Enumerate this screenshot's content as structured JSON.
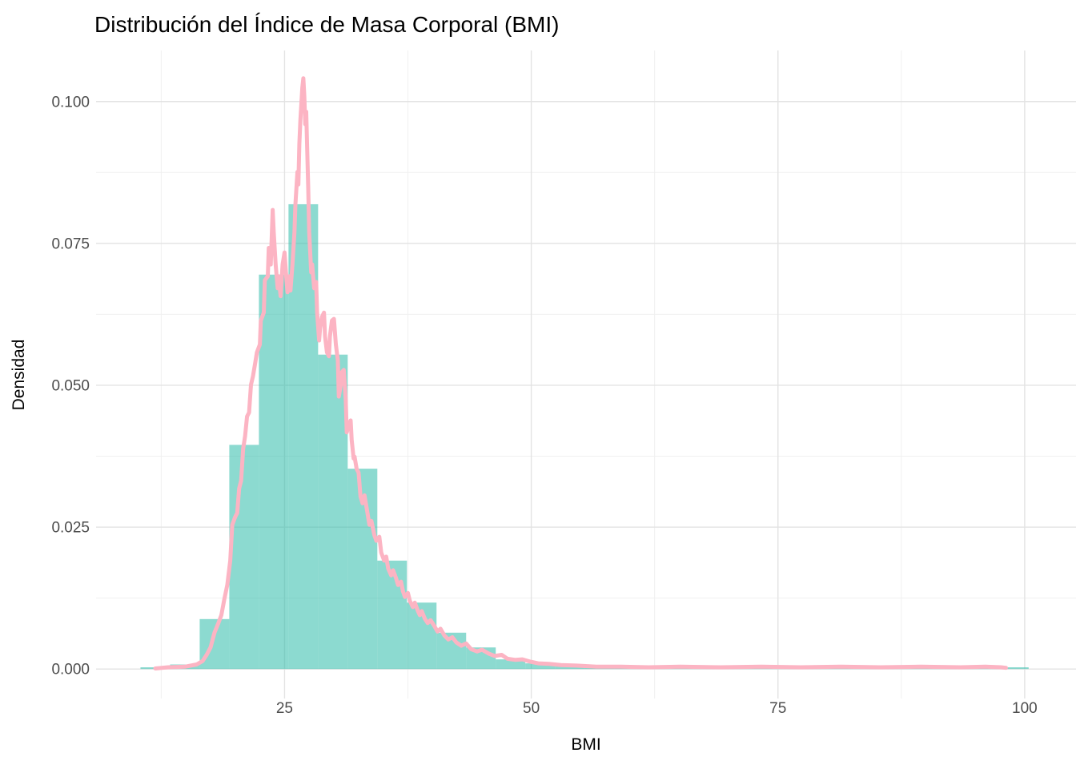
{
  "title": "Distribución del Índice de Masa Corporal (BMI)",
  "chart_data": {
    "type": "bar",
    "subtype": "histogram-with-density-overlay",
    "title": "Distribución del Índice de Masa Corporal (BMI)",
    "xlabel": "BMI",
    "ylabel": "Densidad",
    "legend_position": "none",
    "grid": true,
    "background": "#ffffff",
    "major_grid_color": "#e3e3e3",
    "minor_grid_color": "#f0f0f0",
    "xlim": [
      5.9,
      105.2
    ],
    "ylim": [
      -0.0052,
      0.109
    ],
    "x_ticks": [
      "25",
      "50",
      "75",
      "100"
    ],
    "x_tick_values": [
      25,
      50,
      75,
      100
    ],
    "x_minor_tick_values": [
      12.5,
      37.5,
      62.5,
      87.5
    ],
    "y_ticks": [
      "0.000",
      "0.025",
      "0.050",
      "0.075",
      "0.100"
    ],
    "y_tick_values": [
      0,
      0.025,
      0.05,
      0.075,
      0.1
    ],
    "y_minor_tick_values": [
      0.0125,
      0.0375,
      0.0625,
      0.0875
    ],
    "histogram": {
      "fill_color": "#2dbbaa",
      "fill_opacity": 0.55,
      "bin_start": 10.4,
      "bin_width": 3.0,
      "densities": [
        0.0003,
        0.0008,
        0.0088,
        0.0395,
        0.0695,
        0.0819,
        0.0554,
        0.0353,
        0.0191,
        0.0117,
        0.0064,
        0.0038,
        0.0017,
        0.001,
        0.0006,
        0.0004,
        0.0003,
        0.0003,
        0.0003,
        0.0003,
        0.0003,
        0.0003,
        0.0003,
        0.0003,
        0.0003,
        0.0003,
        0.0003,
        0.0003,
        0.0003,
        0.0003
      ]
    },
    "density_curve": {
      "color": "#fcb4c3",
      "stroke_width": 5,
      "points": [
        [
          11.9,
          0.0001
        ],
        [
          13.2,
          0.0003
        ],
        [
          14.9,
          0.0004
        ],
        [
          16.1,
          0.0008
        ],
        [
          16.7,
          0.0014
        ],
        [
          17.1,
          0.0025
        ],
        [
          17.5,
          0.0038
        ],
        [
          17.9,
          0.0064
        ],
        [
          18.3,
          0.0081
        ],
        [
          18.6,
          0.0095
        ],
        [
          18.9,
          0.0123
        ],
        [
          19.2,
          0.0148
        ],
        [
          19.5,
          0.0191
        ],
        [
          19.7,
          0.0254
        ],
        [
          20.0,
          0.0268
        ],
        [
          20.2,
          0.0275
        ],
        [
          20.4,
          0.0318
        ],
        [
          20.6,
          0.0332
        ],
        [
          20.8,
          0.0388
        ],
        [
          21.0,
          0.041
        ],
        [
          21.2,
          0.0445
        ],
        [
          21.4,
          0.0452
        ],
        [
          21.6,
          0.0501
        ],
        [
          21.8,
          0.0516
        ],
        [
          22.0,
          0.0537
        ],
        [
          22.2,
          0.0558
        ],
        [
          22.5,
          0.0572
        ],
        [
          22.6,
          0.0614
        ],
        [
          22.9,
          0.0628
        ],
        [
          23.0,
          0.0685
        ],
        [
          23.3,
          0.0692
        ],
        [
          23.4,
          0.0742
        ],
        [
          23.6,
          0.0713
        ],
        [
          23.8,
          0.0809
        ],
        [
          23.9,
          0.077
        ],
        [
          24.1,
          0.0713
        ],
        [
          24.3,
          0.0671
        ],
        [
          24.4,
          0.0692
        ],
        [
          24.6,
          0.0657
        ],
        [
          24.8,
          0.0713
        ],
        [
          25.0,
          0.0734
        ],
        [
          25.2,
          0.0685
        ],
        [
          25.3,
          0.0664
        ],
        [
          25.5,
          0.0692
        ],
        [
          25.6,
          0.0667
        ],
        [
          25.8,
          0.0713
        ],
        [
          26.0,
          0.077
        ],
        [
          26.1,
          0.0819
        ],
        [
          26.3,
          0.0876
        ],
        [
          26.4,
          0.0854
        ],
        [
          26.5,
          0.0925
        ],
        [
          26.6,
          0.0967
        ],
        [
          26.8,
          0.1024
        ],
        [
          26.9,
          0.1041
        ],
        [
          27.0,
          0.101
        ],
        [
          27.1,
          0.096
        ],
        [
          27.2,
          0.0982
        ],
        [
          27.3,
          0.0911
        ],
        [
          27.4,
          0.0847
        ],
        [
          27.5,
          0.077
        ],
        [
          27.7,
          0.0699
        ],
        [
          27.8,
          0.0713
        ],
        [
          28.0,
          0.0671
        ],
        [
          28.2,
          0.0682
        ],
        [
          28.3,
          0.0628
        ],
        [
          28.5,
          0.0579
        ],
        [
          28.6,
          0.06
        ],
        [
          28.8,
          0.0621
        ],
        [
          29.0,
          0.0628
        ],
        [
          29.1,
          0.0586
        ],
        [
          29.3,
          0.0558
        ],
        [
          29.5,
          0.0551
        ],
        [
          29.6,
          0.0586
        ],
        [
          29.8,
          0.0614
        ],
        [
          30.0,
          0.0617
        ],
        [
          30.2,
          0.0572
        ],
        [
          30.4,
          0.0544
        ],
        [
          30.5,
          0.048
        ],
        [
          30.7,
          0.0501
        ],
        [
          30.8,
          0.0523
        ],
        [
          31.0,
          0.0527
        ],
        [
          31.2,
          0.0473
        ],
        [
          31.3,
          0.0417
        ],
        [
          31.5,
          0.0431
        ],
        [
          31.7,
          0.0438
        ],
        [
          31.8,
          0.0403
        ],
        [
          32.0,
          0.0371
        ],
        [
          32.1,
          0.0374
        ],
        [
          32.3,
          0.0353
        ],
        [
          32.5,
          0.0346
        ],
        [
          32.7,
          0.0304
        ],
        [
          32.9,
          0.0292
        ],
        [
          33.1,
          0.0306
        ],
        [
          33.4,
          0.0275
        ],
        [
          33.6,
          0.0254
        ],
        [
          33.8,
          0.0261
        ],
        [
          34.1,
          0.0236
        ],
        [
          34.3,
          0.0226
        ],
        [
          34.6,
          0.0233
        ],
        [
          34.8,
          0.0205
        ],
        [
          35.1,
          0.0191
        ],
        [
          35.3,
          0.0198
        ],
        [
          35.5,
          0.0177
        ],
        [
          35.8,
          0.0165
        ],
        [
          36.0,
          0.0174
        ],
        [
          36.3,
          0.016
        ],
        [
          36.5,
          0.0148
        ],
        [
          36.8,
          0.0154
        ],
        [
          37.0,
          0.0137
        ],
        [
          37.2,
          0.0127
        ],
        [
          37.5,
          0.0134
        ],
        [
          37.7,
          0.012
        ],
        [
          38.0,
          0.0109
        ],
        [
          38.2,
          0.0117
        ],
        [
          38.5,
          0.0103
        ],
        [
          38.7,
          0.0095
        ],
        [
          38.9,
          0.0102
        ],
        [
          39.2,
          0.0089
        ],
        [
          39.5,
          0.0081
        ],
        [
          39.8,
          0.0086
        ],
        [
          40.2,
          0.0075
        ],
        [
          40.5,
          0.0066
        ],
        [
          40.8,
          0.0071
        ],
        [
          41.2,
          0.0059
        ],
        [
          41.6,
          0.0052
        ],
        [
          42.0,
          0.0056
        ],
        [
          42.4,
          0.0047
        ],
        [
          42.9,
          0.0041
        ],
        [
          43.4,
          0.0045
        ],
        [
          43.9,
          0.0035
        ],
        [
          44.5,
          0.0031
        ],
        [
          45.0,
          0.0034
        ],
        [
          45.7,
          0.0027
        ],
        [
          46.3,
          0.0023
        ],
        [
          47.0,
          0.0025
        ],
        [
          47.6,
          0.0018
        ],
        [
          48.4,
          0.0016
        ],
        [
          49.1,
          0.0017
        ],
        [
          49.9,
          0.0013
        ],
        [
          50.7,
          0.001
        ],
        [
          51.8,
          0.0009
        ],
        [
          53.0,
          0.0007
        ],
        [
          54.6,
          0.0006
        ],
        [
          56.6,
          0.0004
        ],
        [
          59.1,
          0.0004
        ],
        [
          61.9,
          0.0003
        ],
        [
          65.1,
          0.0004
        ],
        [
          69.2,
          0.0003
        ],
        [
          73.3,
          0.0004
        ],
        [
          77.3,
          0.0003
        ],
        [
          81.4,
          0.0004
        ],
        [
          85.4,
          0.0003
        ],
        [
          89.5,
          0.0004
        ],
        [
          93.5,
          0.0003
        ],
        [
          96.0,
          0.0004
        ],
        [
          97.6,
          0.0003
        ],
        [
          98.1,
          0.0002
        ]
      ]
    }
  }
}
